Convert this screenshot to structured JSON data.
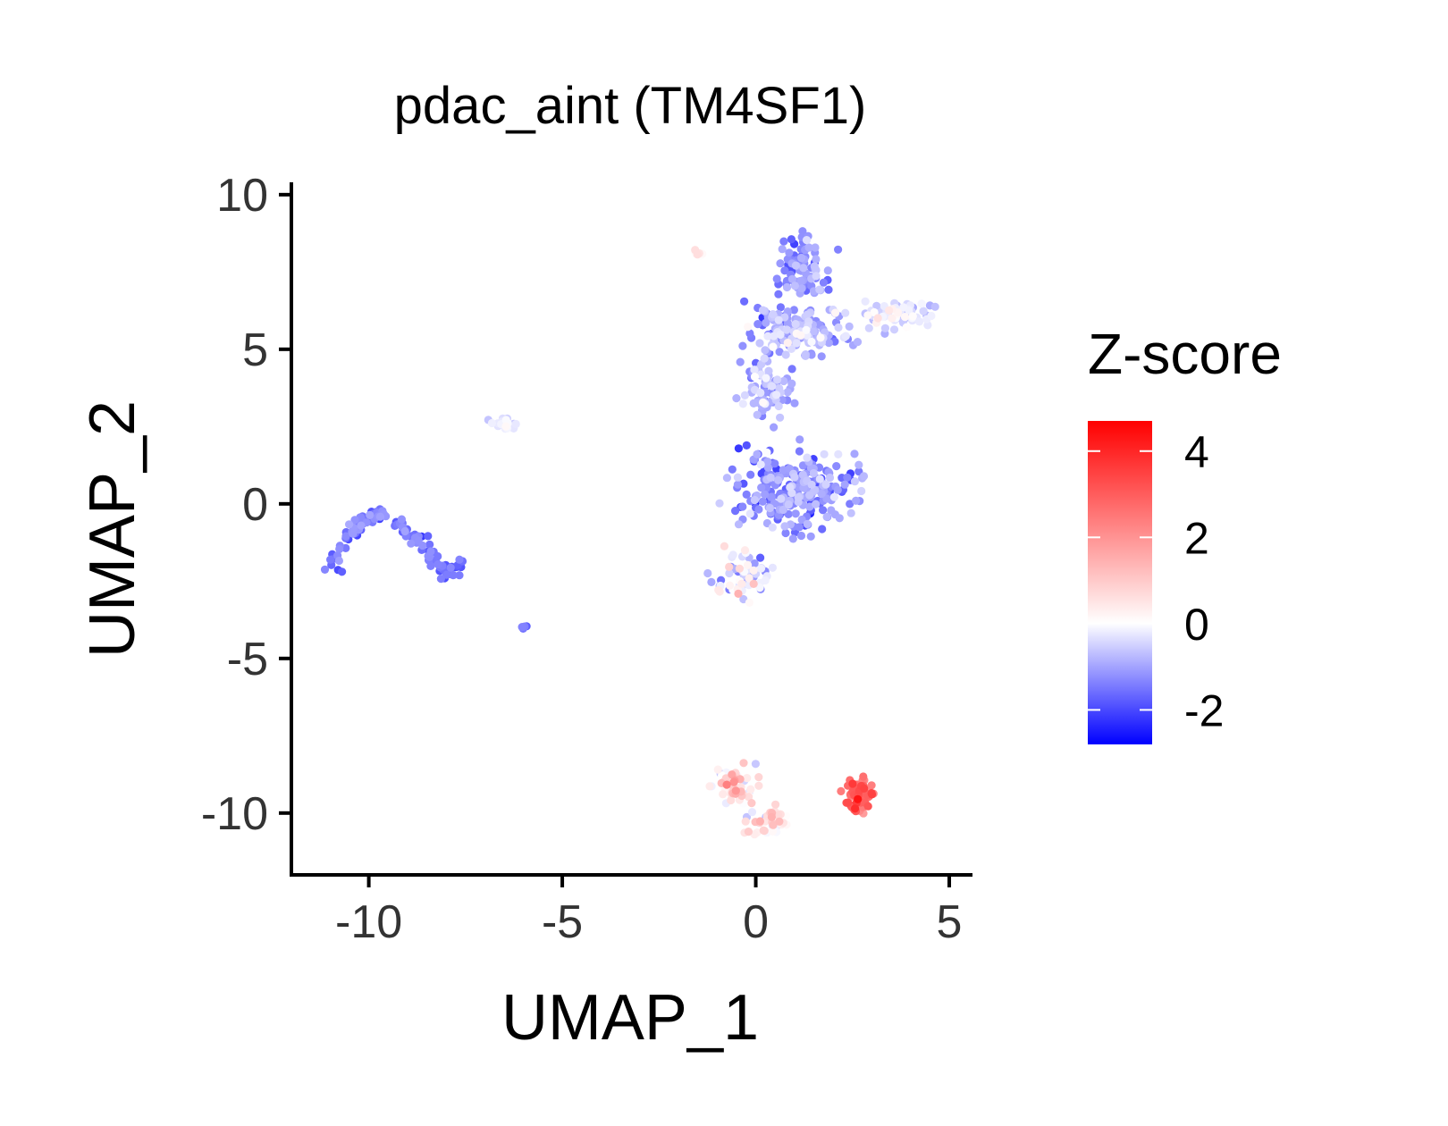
{
  "chart_data": {
    "type": "scatter",
    "title": "pdac_aint (TM4SF1)",
    "xlabel": "UMAP_1",
    "ylabel": "UMAP_2",
    "xlim": [
      -12,
      5.6
    ],
    "ylim": [
      -12,
      10.4
    ],
    "xticks": [
      -10,
      -5,
      0,
      5
    ],
    "yticks": [
      10,
      5,
      0,
      -5,
      -10
    ],
    "grid": false,
    "legend": {
      "title": "Z-score",
      "position": "right",
      "range": [
        -2.8,
        4.7
      ],
      "breaks": [
        4,
        2,
        0,
        -2
      ],
      "colors": {
        "low": "#0000ff",
        "mid": "#ffffff",
        "high": "#ff0000"
      }
    },
    "clusters": [
      {
        "x": 1.2,
        "y": 7.6,
        "sx": 0.55,
        "sy": 0.9,
        "n": 90,
        "z": -1.2,
        "zs": 0.6
      },
      {
        "x": 1.1,
        "y": 5.6,
        "sx": 1.0,
        "sy": 0.7,
        "n": 170,
        "z": -0.9,
        "zs": 0.8
      },
      {
        "x": 3.7,
        "y": 6.1,
        "sx": 0.8,
        "sy": 0.35,
        "n": 70,
        "z": -0.3,
        "zs": 0.6
      },
      {
        "x": 0.3,
        "y": 3.6,
        "sx": 0.55,
        "sy": 0.9,
        "n": 80,
        "z": -0.9,
        "zs": 0.7
      },
      {
        "x": 1.0,
        "y": 0.4,
        "sx": 1.3,
        "sy": 1.2,
        "n": 260,
        "z": -1.2,
        "zs": 0.8
      },
      {
        "x": -0.3,
        "y": -2.3,
        "sx": 0.6,
        "sy": 0.7,
        "n": 60,
        "z": -0.3,
        "zs": 1.0
      },
      {
        "x": -0.5,
        "y": -9.1,
        "sx": 0.5,
        "sy": 0.5,
        "n": 55,
        "z": 0.6,
        "zs": 1.2
      },
      {
        "x": 0.4,
        "y": -10.2,
        "sx": 0.5,
        "sy": 0.4,
        "n": 45,
        "z": 0.5,
        "zs": 1.0
      },
      {
        "x": 2.7,
        "y": -9.4,
        "sx": 0.3,
        "sy": 0.45,
        "n": 80,
        "z": 2.6,
        "zs": 0.9
      },
      {
        "x": -6.5,
        "y": 2.6,
        "sx": 0.25,
        "sy": 0.15,
        "n": 25,
        "z": -0.3,
        "zs": 0.4
      },
      {
        "x": -1.5,
        "y": 8.1,
        "sx": 0.12,
        "sy": 0.08,
        "n": 8,
        "z": 0.3,
        "zs": 0.5
      },
      {
        "x": -6.0,
        "y": -4.0,
        "sx": 0.06,
        "sy": 0.06,
        "n": 5,
        "z": -1.4,
        "zs": 0.3
      }
    ],
    "trajectory": {
      "points": [
        [
          -11.0,
          -2.2
        ],
        [
          -10.5,
          -1.0
        ],
        [
          -10.2,
          -0.5
        ],
        [
          -9.6,
          -0.3
        ],
        [
          -9.0,
          -0.9
        ],
        [
          -8.5,
          -1.4
        ],
        [
          -8.0,
          -2.3
        ],
        [
          -7.6,
          -1.9
        ]
      ],
      "n": 130,
      "spread": 0.18,
      "z": -1.5,
      "zs": 0.4
    }
  }
}
